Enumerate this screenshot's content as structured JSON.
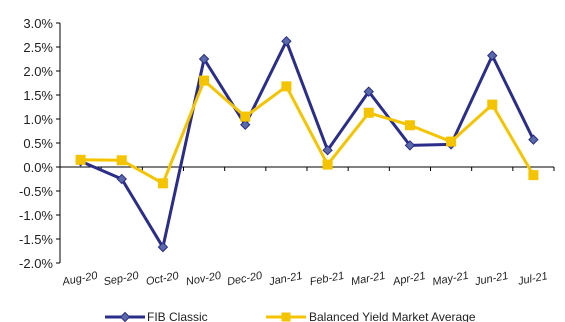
{
  "chart_data": {
    "type": "line",
    "categories": [
      "Aug-20",
      "Sep-20",
      "Oct-20",
      "Nov-20",
      "Dec-20",
      "Jan-21",
      "Feb-21",
      "Mar-21",
      "Apr-21",
      "May-21",
      "Jun-21",
      "Jul-21"
    ],
    "y_tick_labels": [
      "3.0%",
      "2.5%",
      "2.0%",
      "1.5%",
      "1.0%",
      "0.5%",
      "0.0%",
      "-0.5%",
      "-1.0%",
      "-1.5%",
      "-2.0%"
    ],
    "ylim": [
      -2.0,
      3.0
    ],
    "y_unit": "%",
    "grid": false,
    "legend_position": "bottom",
    "series": [
      {
        "name": "FIB Classic",
        "color": "#2b2d8a",
        "marker": "diamond",
        "values": [
          0.12,
          -0.25,
          -1.67,
          2.25,
          0.88,
          2.62,
          0.35,
          1.57,
          0.45,
          0.47,
          2.32,
          0.57
        ]
      },
      {
        "name": "Balanced Yield Market Average",
        "color": "#f5c400",
        "marker": "square",
        "values": [
          0.15,
          0.14,
          -0.34,
          1.8,
          1.05,
          1.68,
          0.05,
          1.13,
          0.87,
          0.53,
          1.3,
          -0.17
        ]
      }
    ]
  }
}
